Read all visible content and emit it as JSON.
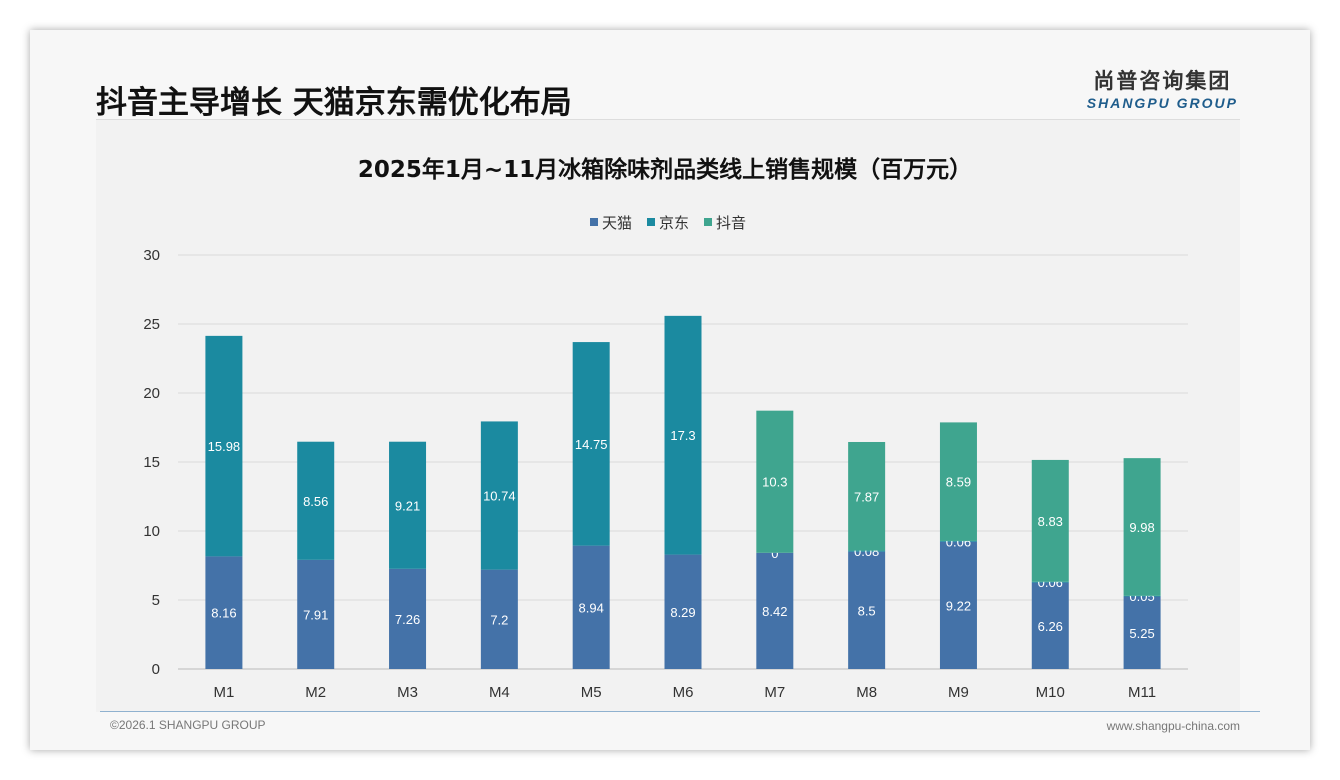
{
  "header": {
    "title": "抖音主导增长 天猫京东需优化布局",
    "logo_cn": "尚普咨询集团",
    "logo_en": "SHANGPU GROUP"
  },
  "footer": {
    "copyright": "©2026.1 SHANGPU GROUP",
    "url": "www.shangpu-china.com"
  },
  "chart_data": {
    "type": "bar",
    "stacked": true,
    "title": "2025年1月~11月冰箱除味剂品类线上销售规模（百万元）",
    "xlabel": "",
    "ylabel": "",
    "ylim": [
      0,
      30
    ],
    "yticks": [
      0,
      5,
      10,
      15,
      20,
      25,
      30
    ],
    "grid": true,
    "legend_position": "top",
    "categories": [
      "M1",
      "M2",
      "M3",
      "M4",
      "M5",
      "M6",
      "M7",
      "M8",
      "M9",
      "M10",
      "M11"
    ],
    "series": [
      {
        "name": "天猫",
        "color": "#4472a8",
        "values": [
          8.16,
          7.91,
          7.26,
          7.2,
          8.94,
          8.29,
          8.42,
          8.5,
          9.22,
          6.26,
          5.25
        ]
      },
      {
        "name": "京东",
        "color": "#1b8aa0",
        "values": [
          15.98,
          8.56,
          9.21,
          10.74,
          14.75,
          17.3,
          0,
          0.08,
          0.06,
          0.06,
          0.05
        ]
      },
      {
        "name": "抖音",
        "color": "#3fa58f",
        "values": [
          null,
          null,
          null,
          null,
          null,
          null,
          10.3,
          7.87,
          8.59,
          8.83,
          9.98
        ]
      }
    ]
  }
}
